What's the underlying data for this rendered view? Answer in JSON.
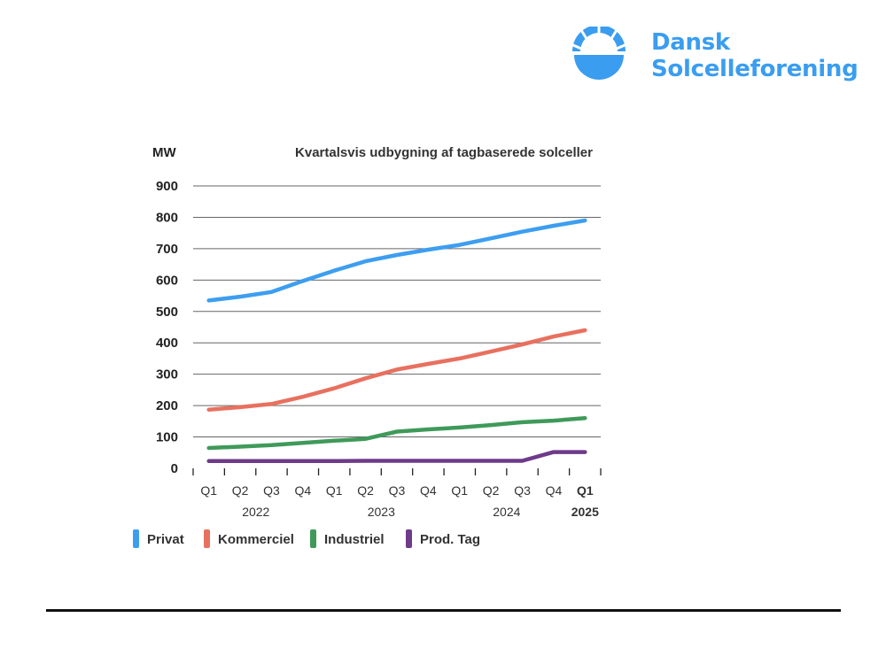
{
  "brand": {
    "line1": "Dansk",
    "line2": "Solcelleforening",
    "color": "#3a9df0",
    "icon": "sun-dome-icon"
  },
  "chart_data": {
    "type": "line",
    "title": "Kvartalsvis udbygning af tagbaserede solceller",
    "ylabel": "MW",
    "xlabel": "",
    "ylim": [
      0,
      900
    ],
    "yticks": [
      0,
      100,
      200,
      300,
      400,
      500,
      600,
      700,
      800,
      900
    ],
    "grid": true,
    "legend": "bottom",
    "categories": [
      "Q1",
      "Q2",
      "Q3",
      "Q4",
      "Q1",
      "Q2",
      "Q3",
      "Q4",
      "Q1",
      "Q2",
      "Q3",
      "Q4",
      "Q1"
    ],
    "year_labels": [
      {
        "label": "2022",
        "bold": false
      },
      {
        "label": "2023",
        "bold": false
      },
      {
        "label": "2024",
        "bold": false
      },
      {
        "label": "2025",
        "bold": true
      }
    ],
    "series": [
      {
        "name": "Privat",
        "color": "#3d9ef0",
        "values": [
          535,
          547,
          562,
          597,
          630,
          660,
          680,
          697,
          712,
          733,
          754,
          773,
          790
        ]
      },
      {
        "name": "Kommerciel",
        "color": "#e8705f",
        "values": [
          187,
          195,
          205,
          228,
          255,
          287,
          315,
          333,
          350,
          372,
          395,
          420,
          440
        ]
      },
      {
        "name": "Industriel",
        "color": "#3f9a5a",
        "values": [
          65,
          69,
          74,
          81,
          88,
          94,
          117,
          124,
          130,
          138,
          147,
          152,
          160
        ]
      },
      {
        "name": "Prod. Tag",
        "color": "#6e3a8a",
        "values": [
          23,
          23,
          23,
          23,
          23,
          24,
          24,
          24,
          24,
          24,
          24,
          52,
          52
        ]
      }
    ]
  }
}
